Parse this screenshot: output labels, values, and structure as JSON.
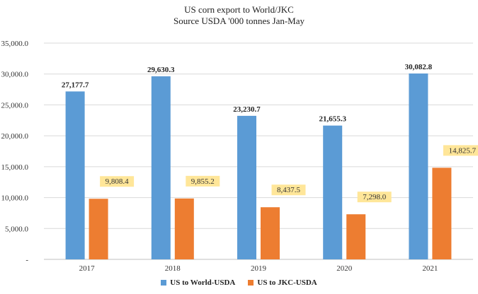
{
  "chart_data": {
    "type": "bar",
    "title": "US corn export to World/JKC",
    "subtitle": "Source USDA '000 tonnes Jan-May",
    "xlabel": "",
    "ylabel": "",
    "categories": [
      "2017",
      "2018",
      "2019",
      "2020",
      "2021"
    ],
    "series": [
      {
        "name": "US to World-USDA",
        "color": "#5B9BD5",
        "values": [
          27177.7,
          29630.3,
          23230.7,
          21655.3,
          30082.8
        ],
        "data_labels": [
          "27,177.7",
          "29,630.3",
          "23,230.7",
          "21,655.3",
          "30,082.8"
        ]
      },
      {
        "name": "US to JKC-USDA",
        "color": "#ED7D31",
        "values": [
          9808.4,
          9855.2,
          8437.5,
          7298.0,
          14825.7
        ],
        "data_labels": [
          "9,808.4",
          "9,855.2",
          "8,437.5",
          "7,298.0",
          "14,825.7"
        ]
      }
    ],
    "ylim": [
      0,
      35000
    ],
    "y_ticks": [
      0,
      5000,
      10000,
      15000,
      20000,
      25000,
      30000,
      35000
    ],
    "y_tick_labels": [
      "-",
      "5,000.0",
      "10,000.0",
      "15,000.0",
      "20,000.0",
      "25,000.0",
      "30,000.0",
      "35,000.0"
    ],
    "grid": true,
    "legend_position": "bottom",
    "label_highlight_color": "#FFE699"
  }
}
